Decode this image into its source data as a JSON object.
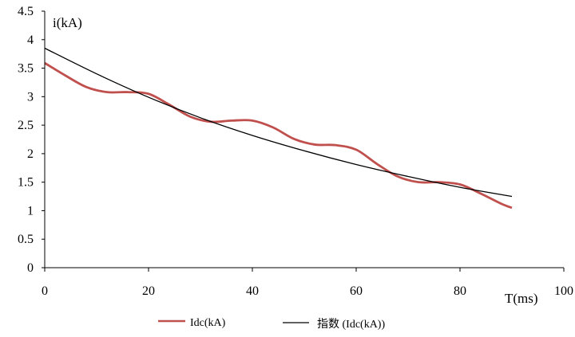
{
  "chart_data": {
    "type": "line",
    "xlabel": "T(ms)",
    "ylabel": "i(kA)",
    "xlim": [
      0,
      100
    ],
    "ylim": [
      0,
      4.5
    ],
    "x_ticks": [
      "0",
      "20",
      "40",
      "60",
      "80",
      "100"
    ],
    "y_ticks": [
      "0",
      "0.5",
      "1",
      "1.5",
      "2",
      "2.5",
      "3",
      "3.5",
      "4",
      "4.5"
    ],
    "grid": false,
    "legend_position": "bottom",
    "series": [
      {
        "name": "Idc(kA)",
        "color": "#c0504d",
        "x": [
          0,
          4,
          8,
          12,
          16,
          20,
          24,
          28,
          32,
          36,
          40,
          44,
          48,
          52,
          56,
          60,
          64,
          68,
          72,
          76,
          80,
          84,
          88,
          90
        ],
        "y": [
          3.59,
          3.37,
          3.17,
          3.08,
          3.08,
          3.05,
          2.86,
          2.65,
          2.56,
          2.58,
          2.58,
          2.46,
          2.26,
          2.16,
          2.15,
          2.07,
          1.82,
          1.6,
          1.5,
          1.5,
          1.46,
          1.3,
          1.12,
          1.05
        ]
      },
      {
        "name": "指数 (Idc(kA))",
        "color": "#000000",
        "x": [
          0,
          10,
          20,
          30,
          40,
          50,
          60,
          70,
          80,
          90
        ],
        "y": [
          3.85,
          3.4,
          2.99,
          2.63,
          2.32,
          2.05,
          1.81,
          1.6,
          1.41,
          1.25
        ]
      }
    ]
  }
}
